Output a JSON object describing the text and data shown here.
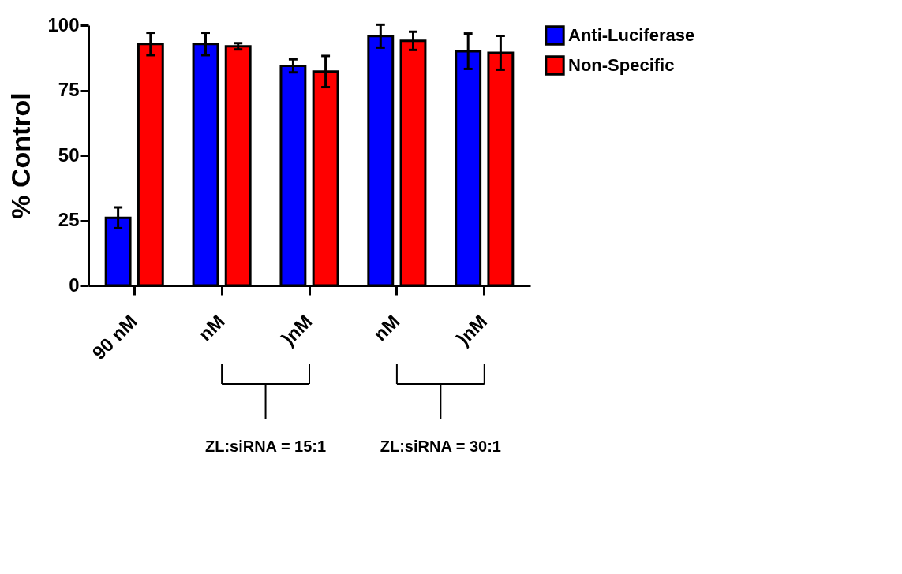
{
  "chart_data": {
    "type": "bar",
    "ylabel": "% Control",
    "categories": [
      "90 nM",
      "nM",
      ")nM",
      "nM",
      ")nM"
    ],
    "series": [
      {
        "name": "Anti-Luciferase",
        "color": "#0000ff",
        "values": [
          26,
          92.8,
          84.4,
          95.8,
          90
        ],
        "errors": [
          4,
          4.3,
          2.5,
          4.4,
          6.8
        ]
      },
      {
        "name": "Non-Specific",
        "color": "#ff0000",
        "values": [
          92.8,
          91.9,
          82.2,
          94,
          89.4
        ],
        "errors": [
          4.3,
          1.2,
          6,
          3.5,
          6.5
        ]
      }
    ],
    "ylim": [
      0,
      100
    ],
    "yticks": [
      0,
      25,
      50,
      75,
      100
    ],
    "grid": false,
    "legend": "top right",
    "annotations": [
      "ZL:siRNA = 15:1",
      "ZL:siRNA = 30:1"
    ]
  }
}
